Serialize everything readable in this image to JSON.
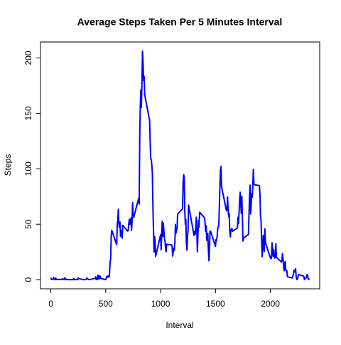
{
  "chart_data": {
    "type": "line",
    "title": "Average Steps Taken Per 5 Minutes Interval",
    "x_label": "Interval",
    "y_label": "Steps",
    "x": [
      0,
      5,
      10,
      15,
      20,
      25,
      30,
      35,
      40,
      45,
      50,
      55,
      100,
      105,
      110,
      115,
      120,
      125,
      130,
      135,
      140,
      145,
      150,
      155,
      200,
      205,
      210,
      215,
      220,
      225,
      230,
      235,
      240,
      245,
      250,
      255,
      300,
      305,
      310,
      315,
      320,
      325,
      330,
      335,
      340,
      345,
      350,
      355,
      400,
      405,
      410,
      415,
      420,
      425,
      430,
      435,
      440,
      445,
      450,
      455,
      500,
      505,
      510,
      515,
      520,
      525,
      530,
      535,
      540,
      545,
      550,
      555,
      600,
      605,
      610,
      615,
      620,
      625,
      630,
      635,
      640,
      645,
      650,
      655,
      700,
      705,
      710,
      715,
      720,
      725,
      730,
      735,
      740,
      745,
      750,
      755,
      800,
      805,
      810,
      815,
      820,
      825,
      830,
      835,
      840,
      845,
      850,
      855,
      900,
      905,
      910,
      915,
      920,
      925,
      930,
      935,
      940,
      945,
      950,
      955,
      1000,
      1005,
      1010,
      1015,
      1020,
      1025,
      1030,
      1035,
      1040,
      1045,
      1050,
      1055,
      1100,
      1105,
      1110,
      1115,
      1120,
      1125,
      1130,
      1135,
      1140,
      1145,
      1150,
      1155,
      1200,
      1205,
      1210,
      1215,
      1220,
      1225,
      1230,
      1235,
      1240,
      1245,
      1250,
      1255,
      1300,
      1305,
      1310,
      1315,
      1320,
      1325,
      1330,
      1335,
      1340,
      1345,
      1350,
      1355,
      1400,
      1405,
      1410,
      1415,
      1420,
      1425,
      1430,
      1435,
      1440,
      1445,
      1450,
      1455,
      1500,
      1505,
      1510,
      1515,
      1520,
      1525,
      1530,
      1535,
      1540,
      1545,
      1550,
      1555,
      1600,
      1605,
      1610,
      1615,
      1620,
      1625,
      1630,
      1635,
      1640,
      1645,
      1650,
      1655,
      1700,
      1705,
      1710,
      1715,
      1720,
      1725,
      1730,
      1735,
      1740,
      1745,
      1750,
      1755,
      1800,
      1805,
      1810,
      1815,
      1820,
      1825,
      1830,
      1835,
      1840,
      1845,
      1850,
      1855,
      1900,
      1905,
      1910,
      1915,
      1920,
      1925,
      1930,
      1935,
      1940,
      1945,
      1950,
      1955,
      2000,
      2005,
      2010,
      2015,
      2020,
      2025,
      2030,
      2035,
      2040,
      2045,
      2050,
      2055,
      2100,
      2105,
      2110,
      2115,
      2120,
      2125,
      2130,
      2135,
      2140,
      2145,
      2150,
      2155,
      2200,
      2205,
      2210,
      2215,
      2220,
      2225,
      2230,
      2235,
      2240,
      2245,
      2250,
      2255,
      2300,
      2305,
      2310,
      2315,
      2320,
      2325,
      2330,
      2335,
      2340,
      2345,
      2350,
      2355
    ],
    "series": [
      {
        "name": "Steps",
        "color": "#0000ff",
        "values": [
          1.72,
          0.34,
          0.13,
          0.15,
          0.08,
          2.09,
          0.53,
          0.87,
          0,
          1.47,
          0.3,
          0.13,
          0.32,
          0.68,
          0.15,
          0.34,
          0,
          1.11,
          1.83,
          0.17,
          0.17,
          0.38,
          0.26,
          0,
          0,
          0,
          1.13,
          0,
          0,
          0.13,
          0,
          0.23,
          0,
          0,
          1.55,
          0.94,
          0,
          0,
          0,
          0,
          0.21,
          0.62,
          1.62,
          0.58,
          0.49,
          0.08,
          0,
          0,
          1.19,
          0.94,
          2.57,
          0,
          0.34,
          0.36,
          4.11,
          0.66,
          3.49,
          0.83,
          3.11,
          1.11,
          0,
          1.57,
          3,
          2.25,
          3.32,
          2.96,
          2.09,
          6.06,
          16.02,
          18.34,
          39.5,
          44.5,
          31.5,
          49.3,
          53.8,
          63.5,
          50,
          47,
          52,
          39,
          44,
          44.2,
          37.4,
          49,
          43.8,
          44.4,
          50.5,
          54.5,
          49.9,
          51,
          55.7,
          44.3,
          52.3,
          69.5,
          57.8,
          56.2,
          73.4,
          68.2,
          129.4,
          157.5,
          171.2,
          155.4,
          177.3,
          206.17,
          195.9,
          179.6,
          183.4,
          167,
          143.5,
          124,
          109.1,
          108.1,
          103.7,
          95.9,
          66.2,
          45.2,
          24.8,
          38.8,
          35,
          21,
          40.6,
          26.9,
          42.4,
          52.7,
          38.9,
          50.8,
          44.3,
          37.4,
          34.7,
          28.3,
          25.1,
          31.9,
          31.4,
          29.7,
          21.3,
          25.5,
          28.4,
          26.5,
          33.4,
          49.9,
          42,
          44.6,
          46,
          59.2,
          63.9,
          87.7,
          94.8,
          92.8,
          63.4,
          50.2,
          54.5,
          32.4,
          26.5,
          37.7,
          45.1,
          67.3,
          42.3,
          39.9,
          43.3,
          41,
          46.2,
          56.4,
          42.8,
          25.1,
          39.9,
          53.5,
          47.3,
          60.8,
          55.8,
          52,
          43.6,
          48.7,
          35.5,
          37.5,
          41.8,
          27.5,
          17.1,
          26.1,
          43.6,
          43.8,
          30,
          36.1,
          35.5,
          38.8,
          46,
          47.8,
          48.1,
          65.3,
          82.9,
          98.7,
          102.1,
          84,
          62.1,
          64.1,
          74.5,
          63.2,
          56.9,
          59.8,
          43.9,
          38.6,
          44.7,
          45.5,
          46.2,
          43.7,
          46.6,
          56.3,
          50.7,
          61.2,
          72.7,
          78.9,
          68.9,
          59.7,
          75.1,
          56.5,
          34.8,
          37.5,
          40.7,
          58,
          74.7,
          85.3,
          59.3,
          67.8,
          77.7,
          74.2,
          85.3,
          99.5,
          86.6,
          85.6,
          84.9,
          77.8,
          58,
          53.4,
          36.3,
          20.7,
          27.4,
          40,
          30.2,
          25.5,
          45.7,
          33.5,
          19.6,
          19,
          19.3,
          33.3,
          26.8,
          21.2,
          27.3,
          21.3,
          19.5,
          21.3,
          32.3,
          20.2,
          15.9,
          17.2,
          23.5,
          19.2,
          12.5,
          8,
          14.7,
          16.3,
          8.7,
          7.8,
          8.1,
          2.6,
          1.5,
          3.7,
          4.8,
          8.5,
          7.1,
          8.7,
          9.8,
          2.2,
          0.3,
          0.1,
          1.6,
          4.6,
          3.3,
          2.8,
          0,
          0.8,
          1,
          1.6,
          2.6,
          4.7,
          3.3,
          0.6,
          0.2,
          1.1
        ]
      }
    ],
    "xlim": [
      -94.2,
      2449.2
    ],
    "xticks": [
      0,
      500,
      1000,
      1500,
      2000
    ],
    "ylim": [
      -8.25,
      214.42
    ],
    "yticks": [
      0,
      50,
      100,
      150,
      200
    ]
  }
}
